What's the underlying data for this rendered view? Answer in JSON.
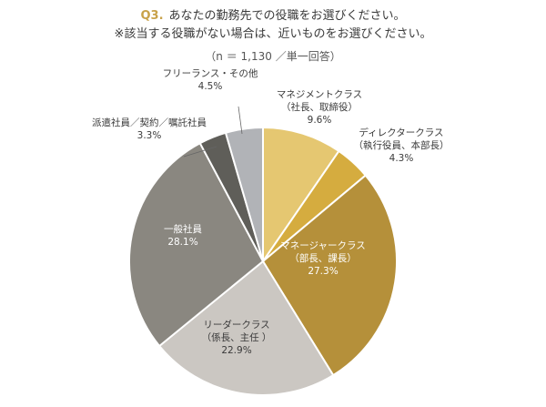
{
  "header": {
    "q_number": "Q3.",
    "question_line1": "あなたの勤務先での役職をお選びください。",
    "question_line2": "※該当する役職がない場合は、近いものをお選びください。",
    "note": "（n ＝ 1,130 ／単一回答）"
  },
  "chart_data": {
    "type": "pie",
    "start_angle_deg": 0,
    "direction": "clockwise",
    "slices": [
      {
        "label": "マネジメントクラス",
        "sub": "（社長、取締役）",
        "value": 9.6,
        "value_label": "9.6%",
        "color": "#e5c771"
      },
      {
        "label": "ディレクタークラス",
        "sub": "（執行役員、本部長）",
        "value": 4.3,
        "value_label": "4.3%",
        "color": "#d5ac3f"
      },
      {
        "label": "マネージャークラス",
        "sub": "（部長、課長）",
        "value": 27.3,
        "value_label": "27.3%",
        "color": "#b5903a"
      },
      {
        "label": "リーダークラス",
        "sub": "（係長、主任 ）",
        "value": 22.9,
        "value_label": "22.9%",
        "color": "#cbc7c2"
      },
      {
        "label": "一般社員",
        "sub": "",
        "value": 28.1,
        "value_label": "28.1%",
        "color": "#8a8780"
      },
      {
        "label": "派遣社員／契約／嘱託社員",
        "sub": "",
        "value": 3.3,
        "value_label": "3.3%",
        "color": "#5f5e59"
      },
      {
        "label": "フリーランス・その他",
        "sub": "",
        "value": 4.5,
        "value_label": "4.5%",
        "color": "#b1b3b7"
      }
    ]
  }
}
